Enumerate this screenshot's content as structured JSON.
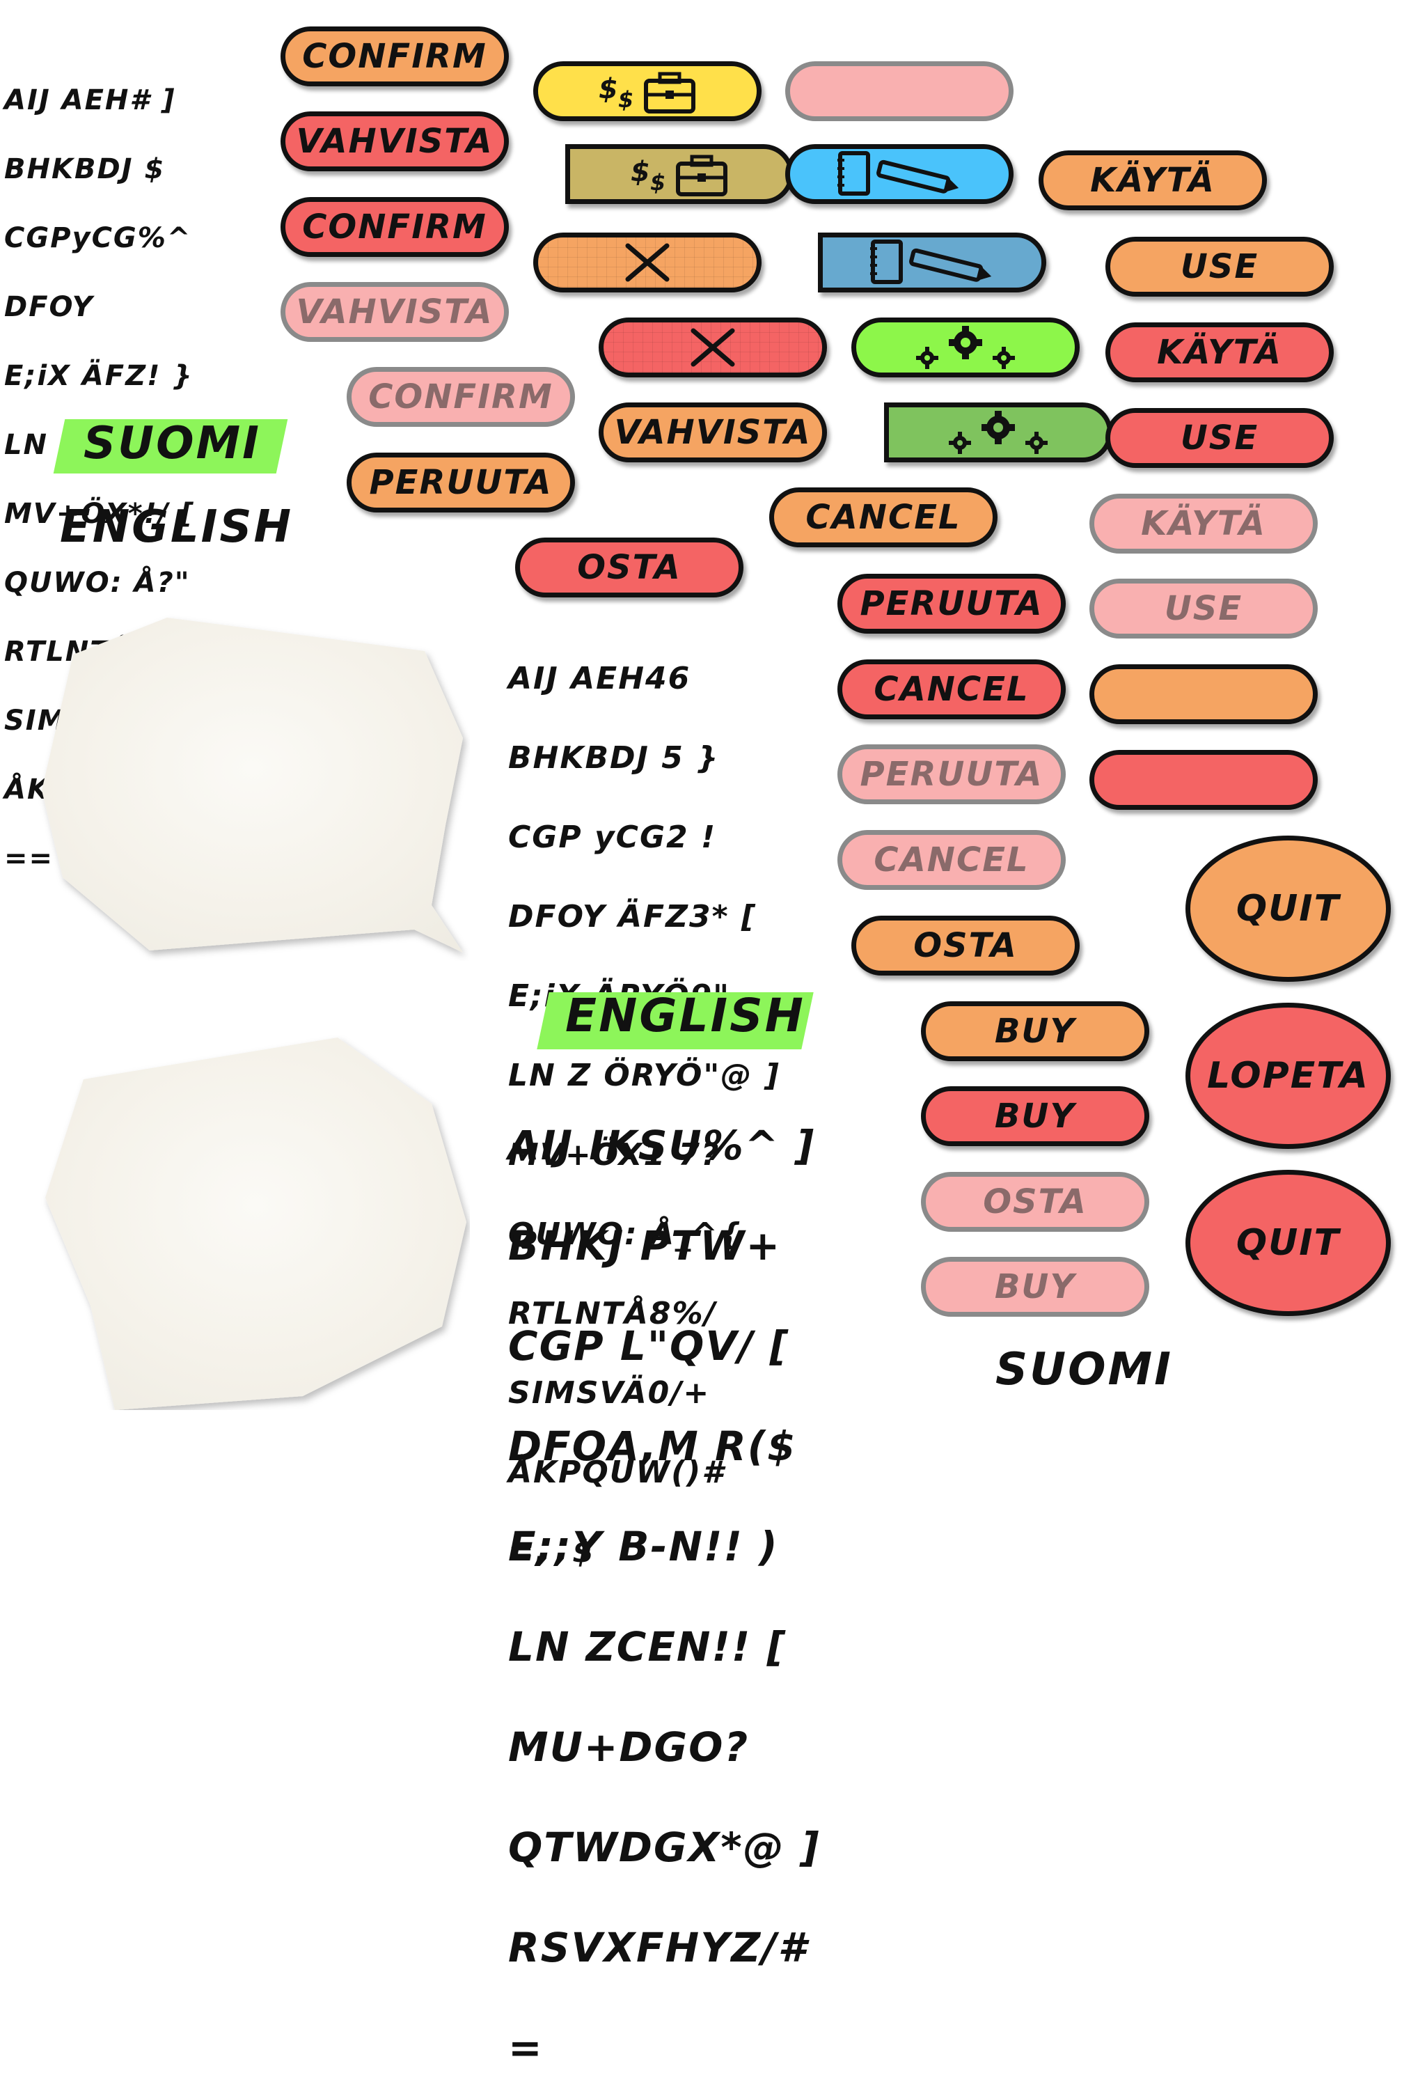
{
  "glyph_sheets": {
    "sheet1": [
      "AIJ AEH# ]",
      "BHKBDJ $",
      "CGPyCG%^",
      "DFOY ",
      "E;iX ÄFZ! }",
      "LN Z ÄRY Ö",
      "MV+ÖX*!/ [",
      "QUWO: Å?\"",
      "RTLNTÅ:@",
      "SIMSVÄ(&",
      "ÅKPQUW){",
      "=="
    ],
    "sheet2": [
      "AIJ AEH46",
      "BHKBDJ 5 }",
      "CGP yCG2 !",
      "DFOY ÄFZ3* [",
      "E;iX ÄRYÖ9\"",
      "LN Z ÖRYÖ\"@ ]",
      "MV+ÖX1 7?",
      "QUWO: Å_^{",
      "RTLNTÅ8%/",
      "SIMSVÄ0/+",
      "ÅKPQUW()#",
      "=,  $"
    ],
    "sheet3": [
      "AIJ IKSU%^ ]",
      "BHKJ PTW+",
      "CGP L\"QV/ [",
      "DFOA,M R($",
      "E;;Y B-N!! )",
      "LN ZCEN!! [",
      "MU+DGO?",
      "QTWDGX*@ ]",
      "RSVXFHYZ/#",
      "="
    ]
  },
  "labels": {
    "suomi_top": "Suomi",
    "english_top": "English",
    "english_mid": "English",
    "suomi_bottom": "Suomi"
  },
  "buttons": {
    "confirm_orange": "Confirm",
    "vahvista_red": "Vahvista",
    "confirm_red": "Confirm",
    "vahvista_disabled": "Vahvista",
    "confirm_disabled": "Confirm",
    "peruuta_orange": "Peruuta",
    "vahvista_orange": "Vahvista",
    "cancel_orange": "Cancel",
    "osta_red": "Osta",
    "peruuta_red": "Peruuta",
    "cancel_red": "Cancel",
    "peruuta_disabled": "Peruuta",
    "cancel_disabled": "Cancel",
    "osta_orange": "Osta",
    "buy_orange": "Buy",
    "buy_red": "Buy",
    "osta_disabled": "Osta",
    "buy_disabled": "Buy",
    "kayta_orange": "Käytä",
    "use_orange": "Use",
    "kayta_red": "Käytä",
    "use_red": "Use",
    "kayta_disabled": "Käytä",
    "use_disabled": "Use",
    "quit_orange": "Quit",
    "lopeta_red": "Lopeta",
    "quit_red": "Quit"
  },
  "icons": {
    "shop": "money-briefcase-icon",
    "notes": "notebook-pencil-icon",
    "close": "close-icon",
    "settings": "gears-icon"
  },
  "colors": {
    "orange": "#f5a462",
    "red": "#f46464",
    "disabled": "#f9b0b0",
    "yellow": "#ffe04a",
    "olive": "#c9b565",
    "blue": "#4ac3fb",
    "steel": "#67a9cf",
    "lime": "#8df64a",
    "grass": "#7fc35e",
    "highlight": "#8df55a",
    "outline": "#111111"
  }
}
